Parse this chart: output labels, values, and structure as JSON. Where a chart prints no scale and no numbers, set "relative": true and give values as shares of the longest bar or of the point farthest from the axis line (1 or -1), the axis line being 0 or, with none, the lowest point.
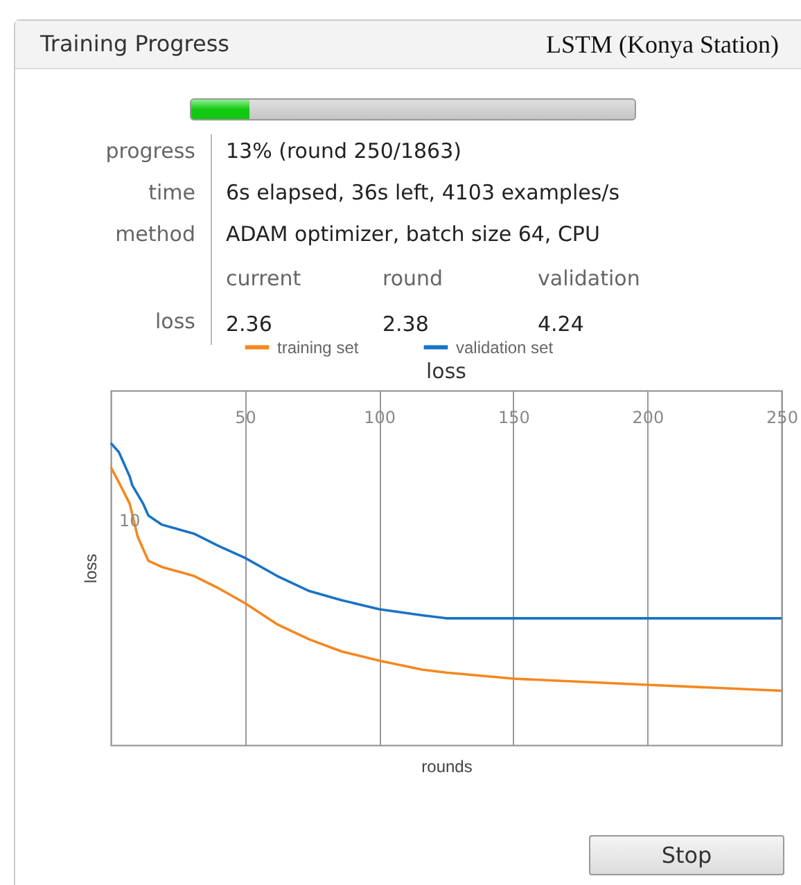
{
  "chart_data": {
    "type": "line",
    "title": "loss",
    "xlabel": "rounds",
    "ylabel": "loss",
    "x": [
      0,
      3,
      7,
      8,
      12,
      14,
      19,
      31,
      40,
      50,
      62,
      74,
      86,
      100,
      116,
      125,
      150,
      200,
      250
    ],
    "series": [
      {
        "name": "training set",
        "color": "#f5871f",
        "x": [
          0,
          3,
          7,
          10,
          14,
          19,
          31,
          40,
          50,
          62,
          74,
          86,
          100,
          116,
          125,
          150,
          199,
          250
        ],
        "values": [
          0.92,
          0.87,
          0.8,
          0.69,
          0.61,
          0.59,
          0.56,
          0.52,
          0.47,
          0.4,
          0.35,
          0.31,
          0.28,
          0.25,
          0.24,
          0.22,
          0.2,
          0.18
        ]
      },
      {
        "name": "validation set",
        "color": "#1a73c4",
        "values": [
          1,
          0.97,
          0.89,
          0.86,
          0.8,
          0.76,
          0.73,
          0.7,
          0.66,
          0.62,
          0.56,
          0.51,
          0.48,
          0.45,
          0.43,
          0.42,
          0.42,
          0.42,
          0.42
        ]
      }
    ],
    "relative": true,
    "xlim": [
      0,
      250
    ],
    "xticks": [
      50,
      100,
      150,
      200,
      250
    ],
    "grid": "x",
    "legend": "top",
    "annotations": [
      "Training Progress",
      "LSTM (Konya Station)",
      "progress",
      "13% (round 250/1863)",
      "time",
      "6s elapsed, 36s left, 4103 examples/s",
      "method",
      "ADAM optimizer, batch size 64, CPU",
      "current",
      "round",
      "validation",
      "loss",
      "2.36",
      "2.38",
      "4.24",
      "10",
      "Stop"
    ]
  }
}
